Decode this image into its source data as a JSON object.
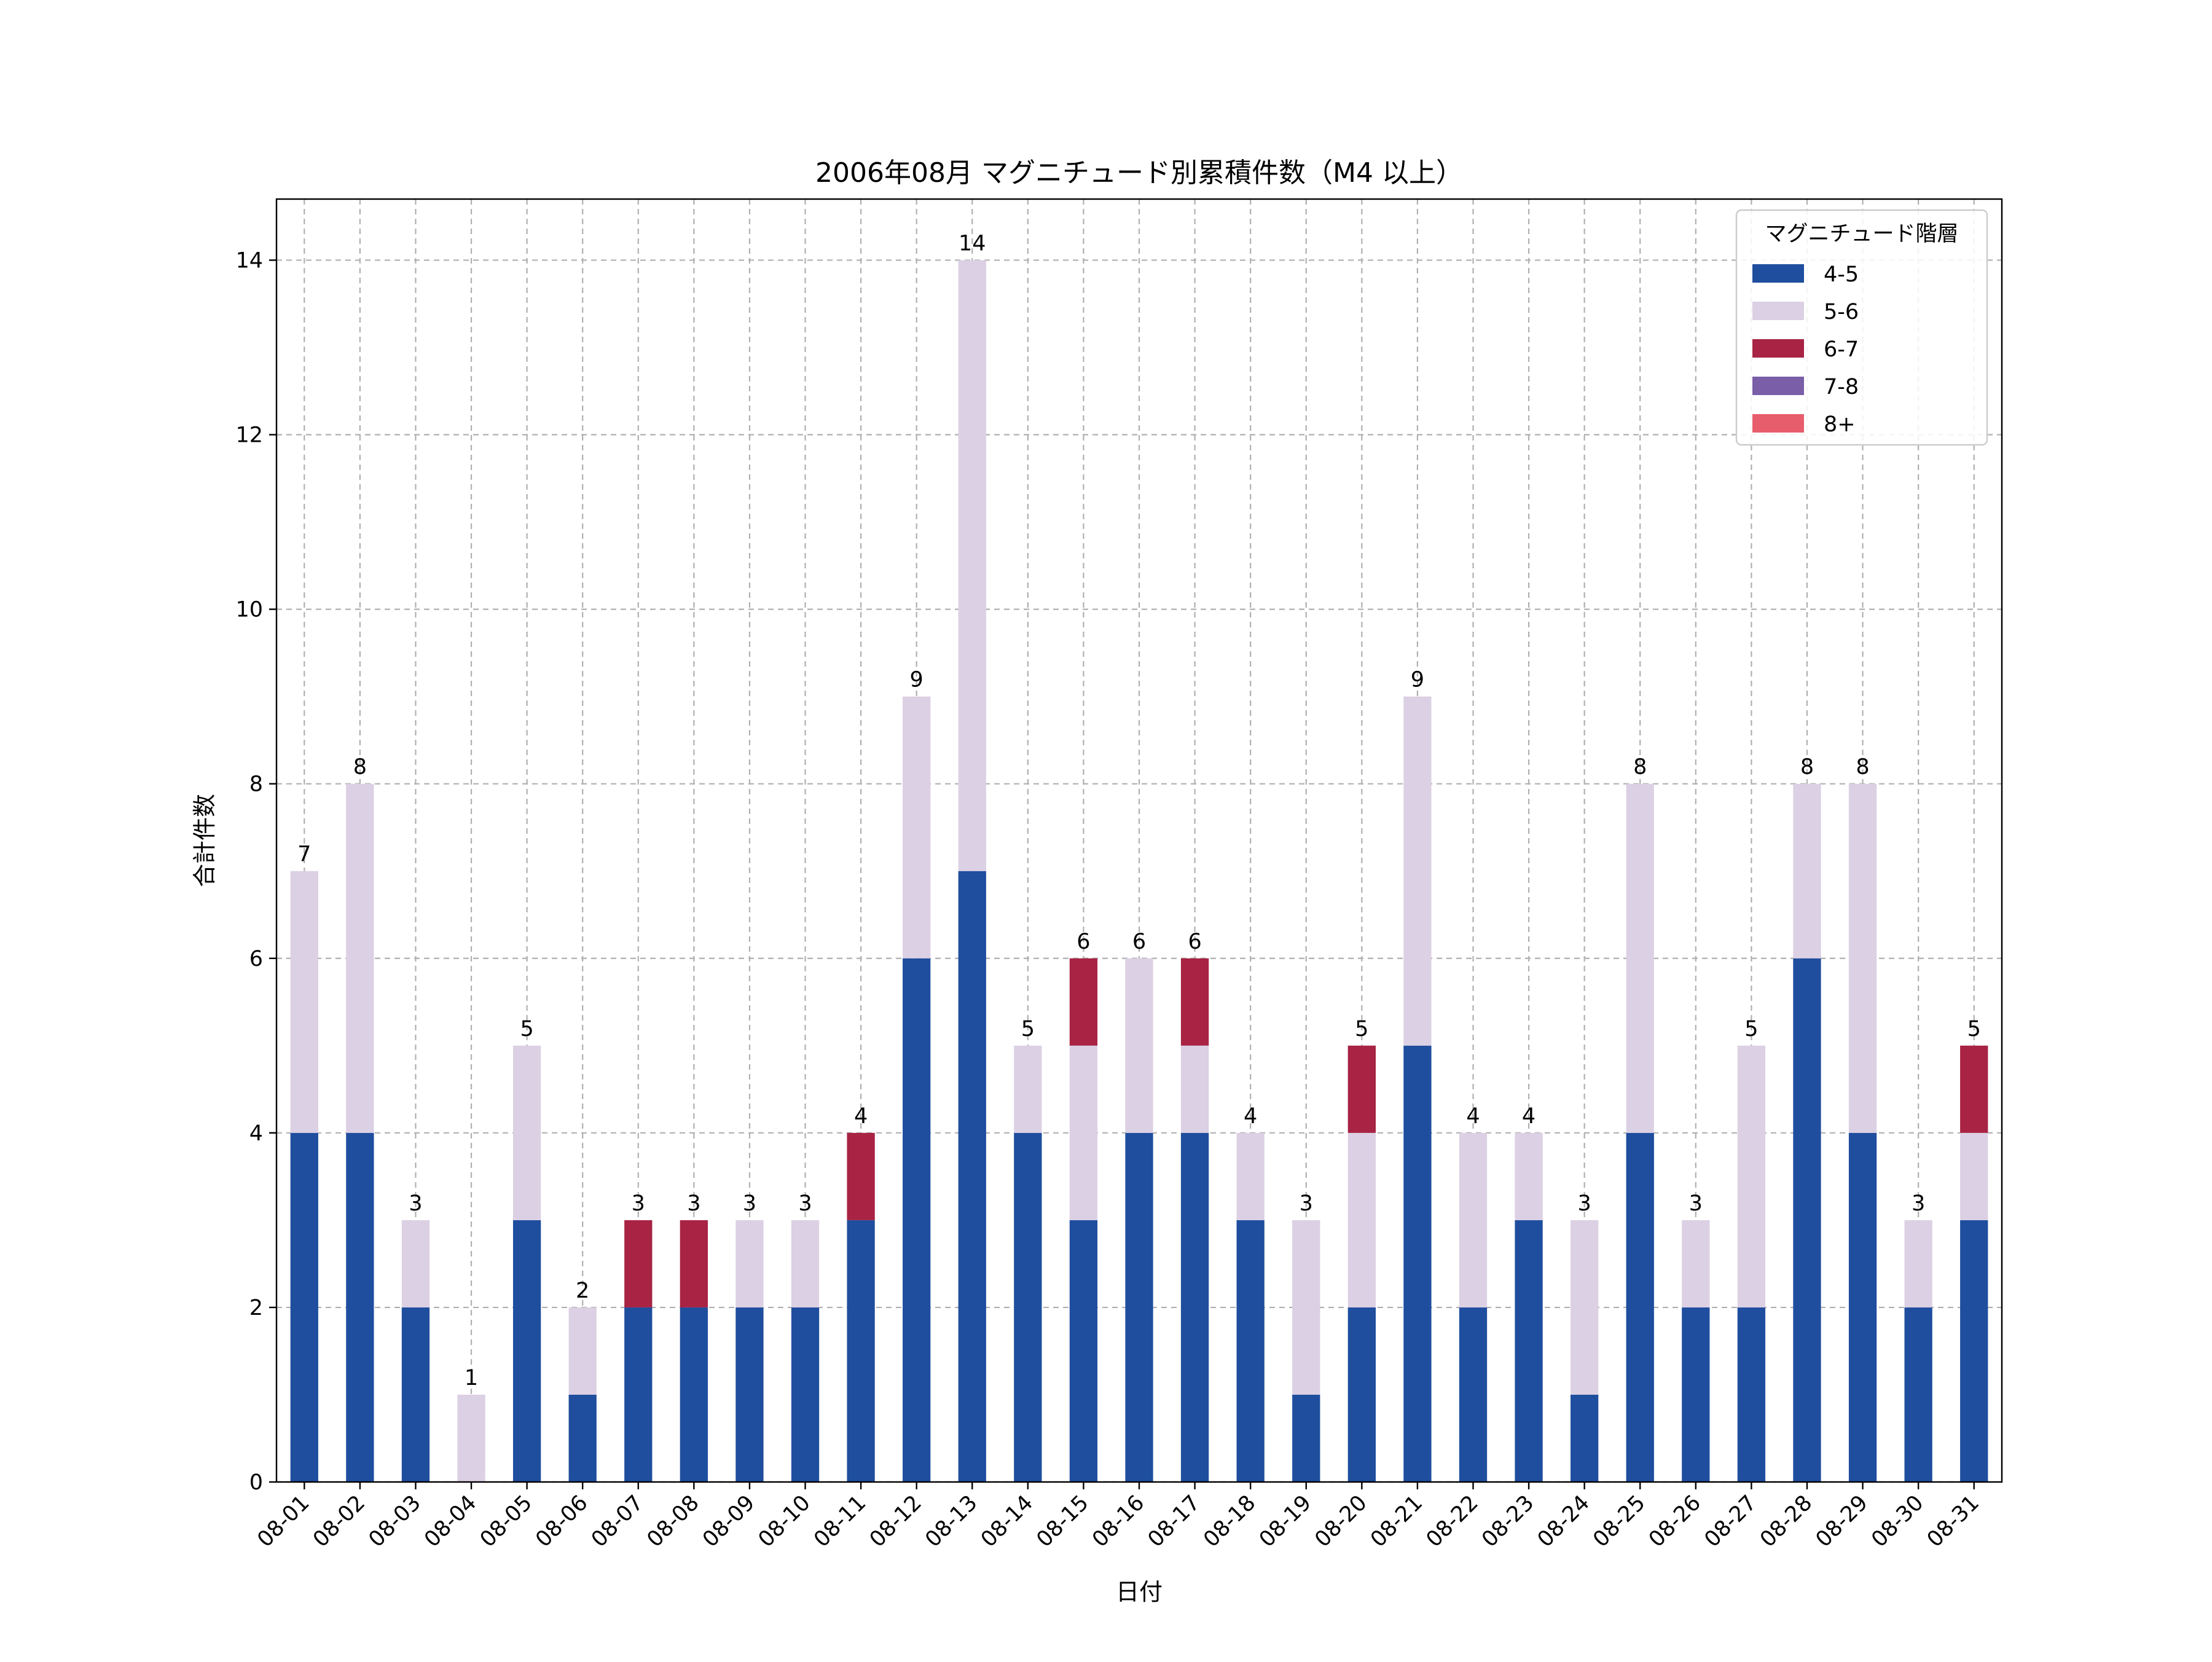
{
  "chart_data": {
    "type": "bar",
    "stacked": true,
    "title": "2006年08月 マグニチュード別累積件数（M4 以上）",
    "xlabel": "日付",
    "ylabel": "合計件数",
    "ylim": [
      0,
      14.7
    ],
    "yticks": [
      0,
      2,
      4,
      6,
      8,
      10,
      12,
      14
    ],
    "grid": true,
    "legend": {
      "title": "マグニチュード階層",
      "placement": "top-right"
    },
    "categories": [
      "08-01",
      "08-02",
      "08-03",
      "08-04",
      "08-05",
      "08-06",
      "08-07",
      "08-08",
      "08-09",
      "08-10",
      "08-11",
      "08-12",
      "08-13",
      "08-14",
      "08-15",
      "08-16",
      "08-17",
      "08-18",
      "08-19",
      "08-20",
      "08-21",
      "08-22",
      "08-23",
      "08-24",
      "08-25",
      "08-26",
      "08-27",
      "08-28",
      "08-29",
      "08-30",
      "08-31"
    ],
    "series": [
      {
        "name": "4-5",
        "color": "#1f4e9e",
        "values": [
          4,
          4,
          2,
          0,
          3,
          1,
          2,
          2,
          2,
          2,
          3,
          6,
          7,
          4,
          3,
          4,
          4,
          3,
          1,
          2,
          5,
          2,
          3,
          1,
          4,
          2,
          2,
          6,
          4,
          2,
          3
        ]
      },
      {
        "name": "5-6",
        "color": "#dcd0e4",
        "values": [
          3,
          4,
          1,
          1,
          2,
          1,
          0,
          0,
          1,
          1,
          0,
          3,
          7,
          1,
          2,
          2,
          1,
          1,
          2,
          2,
          4,
          2,
          1,
          2,
          4,
          1,
          3,
          2,
          4,
          1,
          1
        ]
      },
      {
        "name": "6-7",
        "color": "#a82344",
        "values": [
          0,
          0,
          0,
          0,
          0,
          0,
          1,
          1,
          0,
          0,
          1,
          0,
          0,
          0,
          1,
          0,
          1,
          0,
          0,
          1,
          0,
          0,
          0,
          0,
          0,
          0,
          0,
          0,
          0,
          0,
          1
        ]
      },
      {
        "name": "7-8",
        "color": "#7a5ea8",
        "values": [
          0,
          0,
          0,
          0,
          0,
          0,
          0,
          0,
          0,
          0,
          0,
          0,
          0,
          0,
          0,
          0,
          0,
          0,
          0,
          0,
          0,
          0,
          0,
          0,
          0,
          0,
          0,
          0,
          0,
          0,
          0
        ]
      },
      {
        "name": "8+",
        "color": "#e85d6c",
        "values": [
          0,
          0,
          0,
          0,
          0,
          0,
          0,
          0,
          0,
          0,
          0,
          0,
          0,
          0,
          0,
          0,
          0,
          0,
          0,
          0,
          0,
          0,
          0,
          0,
          0,
          0,
          0,
          0,
          0,
          0,
          0
        ]
      }
    ],
    "totals": [
      7,
      8,
      3,
      1,
      5,
      2,
      3,
      3,
      3,
      3,
      4,
      9,
      14,
      5,
      6,
      6,
      6,
      4,
      3,
      5,
      9,
      4,
      4,
      3,
      8,
      3,
      5,
      8,
      8,
      3,
      5
    ]
  }
}
